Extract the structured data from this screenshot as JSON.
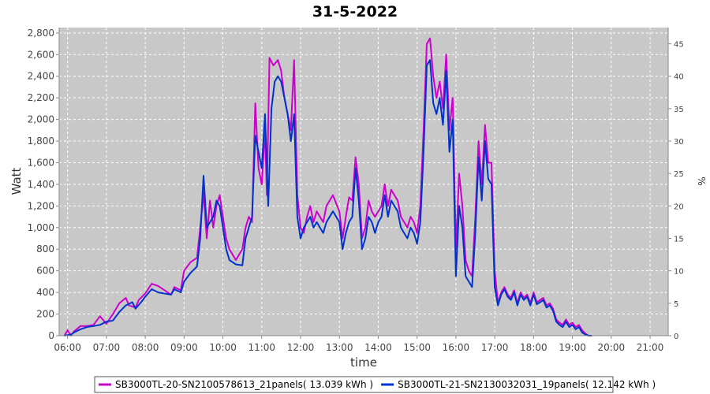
{
  "chart_data": {
    "type": "line",
    "title": "31-5-2022",
    "xlabel": "time",
    "ylabel": "Watt",
    "y2label": "%",
    "xlim": [
      "05:47",
      "21:28"
    ],
    "ylim": [
      0,
      2850
    ],
    "y2lim": [
      0,
      47.5
    ],
    "x_ticks": [
      "06:00",
      "07:00",
      "08:00",
      "09:00",
      "10:00",
      "11:00",
      "12:00",
      "13:00",
      "14:00",
      "15:00",
      "16:00",
      "17:00",
      "18:00",
      "19:00",
      "20:00",
      "21:00"
    ],
    "y_ticks": [
      "0",
      "200",
      "400",
      "600",
      "800",
      "1,000",
      "1,200",
      "1,400",
      "1,600",
      "1,800",
      "2,000",
      "2,200",
      "2,400",
      "2,600",
      "2,800"
    ],
    "y2_ticks": [
      "0",
      "5",
      "10",
      "15",
      "20",
      "25",
      "30",
      "35",
      "40",
      "45"
    ],
    "grid": true,
    "legend_position": "bottom",
    "background_color": "#c8c8c8",
    "series": [
      {
        "name": "SB3000TL-20-SN2100578613_21panels( 13.039 kWh )",
        "color": "#cc00cc",
        "points": [
          [
            "05:55",
            0
          ],
          [
            "06:00",
            50
          ],
          [
            "06:05",
            0
          ],
          [
            "06:10",
            40
          ],
          [
            "06:20",
            90
          ],
          [
            "06:30",
            90
          ],
          [
            "06:40",
            100
          ],
          [
            "06:50",
            180
          ],
          [
            "07:00",
            110
          ],
          [
            "07:10",
            200
          ],
          [
            "07:20",
            300
          ],
          [
            "07:30",
            350
          ],
          [
            "07:35",
            280
          ],
          [
            "07:45",
            260
          ],
          [
            "07:50",
            330
          ],
          [
            "08:00",
            390
          ],
          [
            "08:10",
            480
          ],
          [
            "08:20",
            460
          ],
          [
            "08:30",
            420
          ],
          [
            "08:40",
            380
          ],
          [
            "08:45",
            450
          ],
          [
            "08:55",
            420
          ],
          [
            "09:00",
            600
          ],
          [
            "09:10",
            680
          ],
          [
            "09:20",
            720
          ],
          [
            "09:25",
            1000
          ],
          [
            "09:30",
            1320
          ],
          [
            "09:35",
            900
          ],
          [
            "09:40",
            1250
          ],
          [
            "09:45",
            1000
          ],
          [
            "09:50",
            1200
          ],
          [
            "09:55",
            1300
          ],
          [
            "10:00",
            1100
          ],
          [
            "10:05",
            900
          ],
          [
            "10:10",
            800
          ],
          [
            "10:20",
            700
          ],
          [
            "10:30",
            800
          ],
          [
            "10:35",
            1000
          ],
          [
            "10:40",
            1100
          ],
          [
            "10:45",
            1050
          ],
          [
            "10:50",
            2150
          ],
          [
            "10:55",
            1550
          ],
          [
            "11:00",
            1400
          ],
          [
            "11:05",
            1900
          ],
          [
            "11:08",
            1300
          ],
          [
            "11:12",
            2570
          ],
          [
            "11:18",
            2500
          ],
          [
            "11:25",
            2550
          ],
          [
            "11:30",
            2450
          ],
          [
            "11:35",
            2200
          ],
          [
            "11:40",
            2050
          ],
          [
            "11:45",
            1900
          ],
          [
            "11:50",
            2550
          ],
          [
            "11:55",
            1300
          ],
          [
            "12:00",
            1000
          ],
          [
            "12:05",
            950
          ],
          [
            "12:10",
            1100
          ],
          [
            "12:15",
            1200
          ],
          [
            "12:20",
            1050
          ],
          [
            "12:25",
            1150
          ],
          [
            "12:30",
            1100
          ],
          [
            "12:35",
            1050
          ],
          [
            "12:40",
            1200
          ],
          [
            "12:50",
            1300
          ],
          [
            "13:00",
            1150
          ],
          [
            "13:05",
            900
          ],
          [
            "13:10",
            1100
          ],
          [
            "13:15",
            1280
          ],
          [
            "13:20",
            1250
          ],
          [
            "13:25",
            1650
          ],
          [
            "13:30",
            1400
          ],
          [
            "13:35",
            900
          ],
          [
            "13:40",
            1000
          ],
          [
            "13:45",
            1250
          ],
          [
            "13:50",
            1150
          ],
          [
            "13:55",
            1100
          ],
          [
            "14:00",
            1150
          ],
          [
            "14:05",
            1200
          ],
          [
            "14:10",
            1400
          ],
          [
            "14:15",
            1200
          ],
          [
            "14:20",
            1350
          ],
          [
            "14:25",
            1300
          ],
          [
            "14:30",
            1250
          ],
          [
            "14:35",
            1100
          ],
          [
            "14:40",
            1050
          ],
          [
            "14:45",
            1000
          ],
          [
            "14:50",
            1100
          ],
          [
            "14:55",
            1050
          ],
          [
            "15:00",
            950
          ],
          [
            "15:05",
            1200
          ],
          [
            "15:10",
            1900
          ],
          [
            "15:15",
            2700
          ],
          [
            "15:20",
            2750
          ],
          [
            "15:25",
            2400
          ],
          [
            "15:30",
            2200
          ],
          [
            "15:35",
            2350
          ],
          [
            "15:40",
            2100
          ],
          [
            "15:45",
            2600
          ],
          [
            "15:50",
            1900
          ],
          [
            "15:55",
            2200
          ],
          [
            "16:00",
            800
          ],
          [
            "16:05",
            1500
          ],
          [
            "16:10",
            1200
          ],
          [
            "16:15",
            700
          ],
          [
            "16:20",
            600
          ],
          [
            "16:25",
            550
          ],
          [
            "16:30",
            1100
          ],
          [
            "16:35",
            1800
          ],
          [
            "16:40",
            1400
          ],
          [
            "16:45",
            1950
          ],
          [
            "16:50",
            1600
          ],
          [
            "16:55",
            1600
          ],
          [
            "17:00",
            600
          ],
          [
            "17:05",
            300
          ],
          [
            "17:10",
            400
          ],
          [
            "17:15",
            450
          ],
          [
            "17:20",
            380
          ],
          [
            "17:25",
            350
          ],
          [
            "17:30",
            420
          ],
          [
            "17:35",
            300
          ],
          [
            "17:40",
            400
          ],
          [
            "17:45",
            350
          ],
          [
            "17:50",
            380
          ],
          [
            "17:55",
            300
          ],
          [
            "18:00",
            400
          ],
          [
            "18:05",
            310
          ],
          [
            "18:10",
            330
          ],
          [
            "18:15",
            350
          ],
          [
            "18:20",
            280
          ],
          [
            "18:25",
            300
          ],
          [
            "18:30",
            250
          ],
          [
            "18:35",
            150
          ],
          [
            "18:40",
            120
          ],
          [
            "18:45",
            100
          ],
          [
            "18:50",
            150
          ],
          [
            "18:55",
            100
          ],
          [
            "19:00",
            120
          ],
          [
            "19:05",
            80
          ],
          [
            "19:10",
            100
          ],
          [
            "19:15",
            50
          ],
          [
            "19:20",
            20
          ],
          [
            "19:25",
            0
          ],
          [
            "19:30",
            0
          ]
        ]
      },
      {
        "name": "SB3000TL-21-SN2130032031_19panels( 12.142 kWh )",
        "color": "#0033cc",
        "points": [
          [
            "05:55",
            0
          ],
          [
            "06:05",
            10
          ],
          [
            "06:10",
            30
          ],
          [
            "06:20",
            60
          ],
          [
            "06:30",
            80
          ],
          [
            "06:40",
            90
          ],
          [
            "06:50",
            100
          ],
          [
            "07:00",
            130
          ],
          [
            "07:10",
            140
          ],
          [
            "07:20",
            220
          ],
          [
            "07:30",
            280
          ],
          [
            "07:40",
            310
          ],
          [
            "07:45",
            250
          ],
          [
            "07:55",
            320
          ],
          [
            "08:00",
            360
          ],
          [
            "08:10",
            430
          ],
          [
            "08:20",
            400
          ],
          [
            "08:30",
            390
          ],
          [
            "08:40",
            380
          ],
          [
            "08:45",
            430
          ],
          [
            "08:55",
            400
          ],
          [
            "09:00",
            500
          ],
          [
            "09:10",
            580
          ],
          [
            "09:20",
            640
          ],
          [
            "09:25",
            900
          ],
          [
            "09:30",
            1480
          ],
          [
            "09:35",
            1000
          ],
          [
            "09:40",
            1050
          ],
          [
            "09:45",
            1100
          ],
          [
            "09:50",
            1250
          ],
          [
            "09:55",
            1200
          ],
          [
            "10:00",
            1000
          ],
          [
            "10:05",
            800
          ],
          [
            "10:10",
            700
          ],
          [
            "10:20",
            660
          ],
          [
            "10:30",
            650
          ],
          [
            "10:35",
            900
          ],
          [
            "10:40",
            1000
          ],
          [
            "10:45",
            1100
          ],
          [
            "10:50",
            1850
          ],
          [
            "10:55",
            1700
          ],
          [
            "11:00",
            1550
          ],
          [
            "11:05",
            2050
          ],
          [
            "11:10",
            1200
          ],
          [
            "11:15",
            2100
          ],
          [
            "11:20",
            2350
          ],
          [
            "11:25",
            2400
          ],
          [
            "11:30",
            2350
          ],
          [
            "11:35",
            2200
          ],
          [
            "11:40",
            2050
          ],
          [
            "11:45",
            1800
          ],
          [
            "11:50",
            2050
          ],
          [
            "11:55",
            1100
          ],
          [
            "12:00",
            900
          ],
          [
            "12:05",
            1000
          ],
          [
            "12:10",
            1050
          ],
          [
            "12:15",
            1100
          ],
          [
            "12:20",
            1000
          ],
          [
            "12:25",
            1050
          ],
          [
            "12:30",
            1000
          ],
          [
            "12:35",
            950
          ],
          [
            "12:40",
            1050
          ],
          [
            "12:50",
            1150
          ],
          [
            "13:00",
            1050
          ],
          [
            "13:05",
            800
          ],
          [
            "13:10",
            950
          ],
          [
            "13:15",
            1050
          ],
          [
            "13:20",
            1100
          ],
          [
            "13:25",
            1550
          ],
          [
            "13:30",
            1250
          ],
          [
            "13:35",
            800
          ],
          [
            "13:40",
            900
          ],
          [
            "13:45",
            1100
          ],
          [
            "13:50",
            1050
          ],
          [
            "13:55",
            950
          ],
          [
            "14:00",
            1050
          ],
          [
            "14:05",
            1100
          ],
          [
            "14:10",
            1300
          ],
          [
            "14:15",
            1100
          ],
          [
            "14:20",
            1250
          ],
          [
            "14:25",
            1200
          ],
          [
            "14:30",
            1150
          ],
          [
            "14:35",
            1000
          ],
          [
            "14:40",
            950
          ],
          [
            "14:45",
            900
          ],
          [
            "14:50",
            1000
          ],
          [
            "14:55",
            950
          ],
          [
            "15:00",
            850
          ],
          [
            "15:05",
            1050
          ],
          [
            "15:10",
            1700
          ],
          [
            "15:15",
            2500
          ],
          [
            "15:20",
            2550
          ],
          [
            "15:25",
            2150
          ],
          [
            "15:30",
            2050
          ],
          [
            "15:35",
            2200
          ],
          [
            "15:40",
            1950
          ],
          [
            "15:45",
            2450
          ],
          [
            "15:50",
            1700
          ],
          [
            "15:55",
            2000
          ],
          [
            "16:00",
            550
          ],
          [
            "16:05",
            1200
          ],
          [
            "16:10",
            1000
          ],
          [
            "16:15",
            550
          ],
          [
            "16:20",
            500
          ],
          [
            "16:25",
            450
          ],
          [
            "16:30",
            950
          ],
          [
            "16:35",
            1650
          ],
          [
            "16:40",
            1250
          ],
          [
            "16:45",
            1800
          ],
          [
            "16:50",
            1450
          ],
          [
            "16:55",
            1400
          ],
          [
            "17:00",
            450
          ],
          [
            "17:05",
            280
          ],
          [
            "17:10",
            380
          ],
          [
            "17:15",
            430
          ],
          [
            "17:20",
            360
          ],
          [
            "17:25",
            330
          ],
          [
            "17:30",
            400
          ],
          [
            "17:35",
            280
          ],
          [
            "17:40",
            380
          ],
          [
            "17:45",
            330
          ],
          [
            "17:50",
            360
          ],
          [
            "17:55",
            280
          ],
          [
            "18:00",
            380
          ],
          [
            "18:05",
            290
          ],
          [
            "18:10",
            310
          ],
          [
            "18:15",
            330
          ],
          [
            "18:20",
            260
          ],
          [
            "18:25",
            280
          ],
          [
            "18:30",
            230
          ],
          [
            "18:35",
            130
          ],
          [
            "18:40",
            100
          ],
          [
            "18:45",
            80
          ],
          [
            "18:50",
            130
          ],
          [
            "18:55",
            80
          ],
          [
            "19:00",
            100
          ],
          [
            "19:05",
            60
          ],
          [
            "19:10",
            80
          ],
          [
            "19:15",
            30
          ],
          [
            "19:20",
            10
          ],
          [
            "19:25",
            0
          ],
          [
            "19:30",
            0
          ]
        ]
      }
    ]
  }
}
